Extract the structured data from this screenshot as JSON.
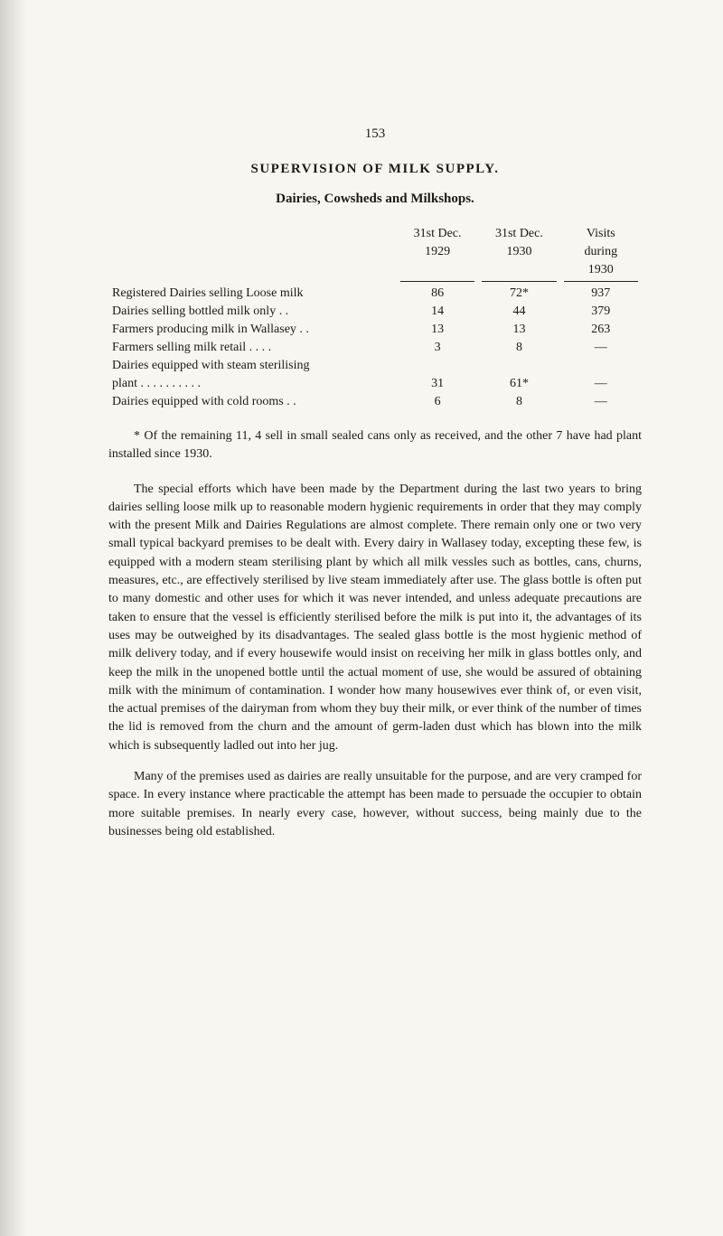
{
  "page_number": "153",
  "heading": "SUPERVISION OF MILK SUPPLY.",
  "subheading": "Dairies, Cowsheds and Milkshops.",
  "table": {
    "header_col1_line1": "31st Dec.",
    "header_col1_line2": "1929",
    "header_col2_line1": "31st Dec.",
    "header_col2_line2": "1930",
    "header_col3_line1": "Visits",
    "header_col3_line2": "during",
    "header_col3_line3": "1930",
    "rows": [
      {
        "label": "Registered Dairies selling Loose milk",
        "c1": "86",
        "c2": "72*",
        "c3": "937"
      },
      {
        "label": "Dairies selling bottled milk only     . .",
        "c1": "14",
        "c2": "44",
        "c3": "379"
      },
      {
        "label": "Farmers producing milk in Wallasey . .",
        "c1": "13",
        "c2": "13",
        "c3": "263"
      },
      {
        "label": "Farmers selling milk retail       . .     . .",
        "c1": "3",
        "c2": "8",
        "c3": "—"
      },
      {
        "label": "Dairies equipped with steam sterilising",
        "c1": "",
        "c2": "",
        "c3": ""
      },
      {
        "label": "plant . .     . .     . .     . .     . .",
        "indent": true,
        "c1": "31",
        "c2": "61*",
        "c3": "—"
      },
      {
        "label": "Dairies equipped with cold rooms     . .",
        "c1": "6",
        "c2": "8",
        "c3": "—"
      }
    ]
  },
  "footnote": "* Of the remaining 11, 4 sell in small sealed cans only as received, and the other 7 have had plant installed since 1930.",
  "para1": "The special efforts which have been made by the Department during the last two years to bring dairies selling loose milk up to reasonable modern hygienic requirements in order that they may comply with the present Milk and Dairies Regulations are almost complete. There remain only one or two very small typical backyard premises to be dealt with. Every dairy in Wallasey today, excepting these few, is equipped with a modern steam sterilising plant by which all milk vessles such as bottles, cans, churns, measures, etc., are effectively sterilised by live steam immediately after use. The glass bottle is often put to many domestic and other uses for which it was never intended, and unless adequate precautions are taken to ensure that the vessel is efficiently sterilised before the milk is put into it, the advantages of its uses may be outweighed by its disadvantages. The sealed glass bottle is the most hygienic method of milk delivery today, and if every housewife would insist on receiving her milk in glass bottles only, and keep the milk in the unopened bottle until the actual moment of use, she would be assured of obtaining milk with the minimum of contamination. I wonder how many housewives ever think of, or even visit, the actual premises of the dairyman from whom they buy their milk, or ever think of the number of times the lid is removed from the churn and the amount of germ-laden dust which has blown into the milk which is subsequently ladled out into her jug.",
  "para2": "Many of the premises used as dairies are really unsuitable for the purpose, and are very cramped for space. In every instance where practicable the attempt has been made to persuade the occupier to obtain more suitable premises. In nearly every case, however, without success, being mainly due to the businesses being old established."
}
